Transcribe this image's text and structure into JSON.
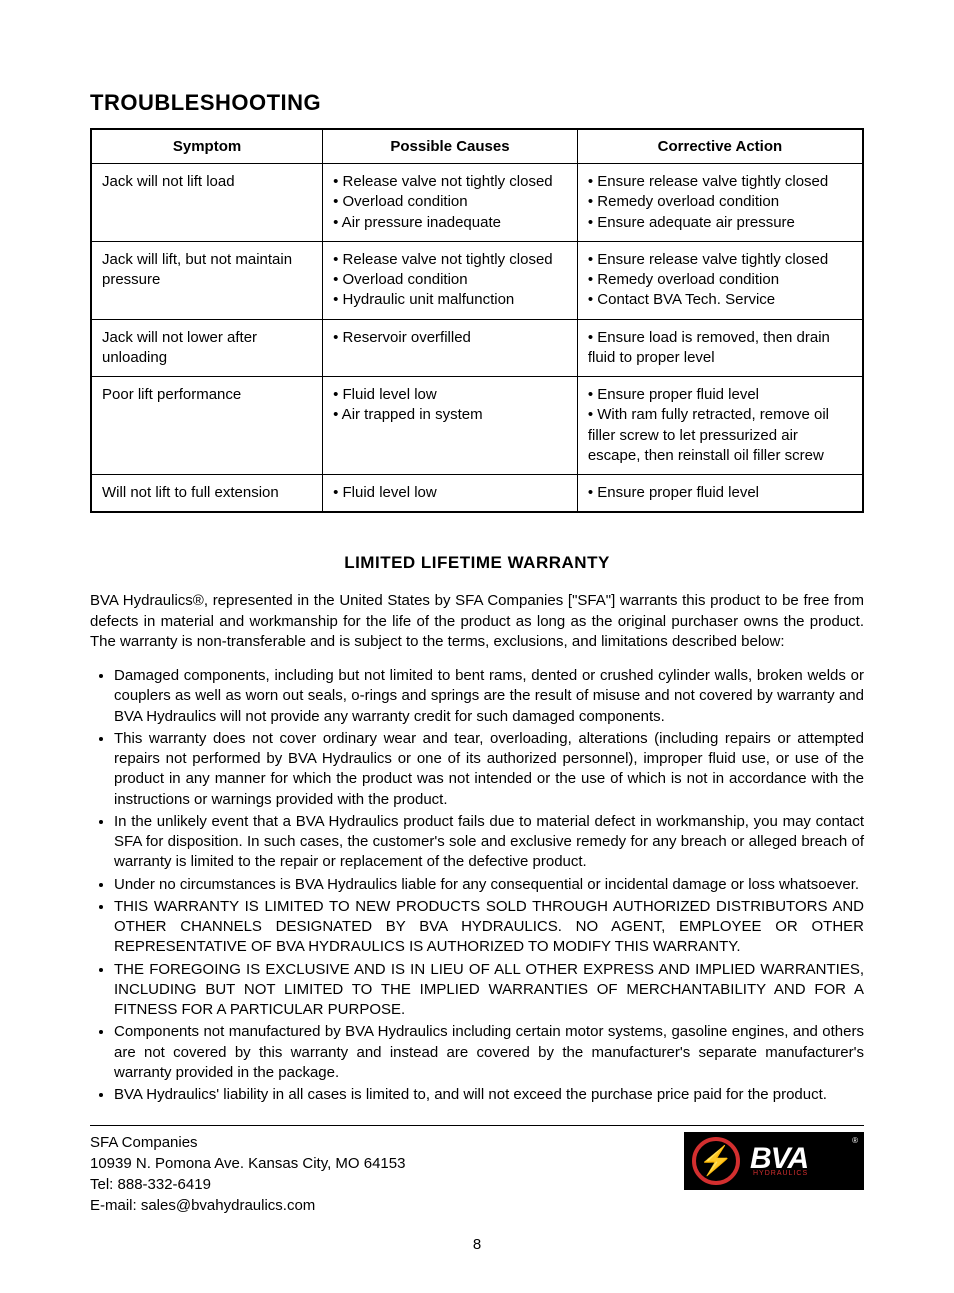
{
  "title": "TROUBLESHOOTING",
  "table": {
    "headers": {
      "symptom": "Symptom",
      "causes": "Possible Causes",
      "action": "Corrective Action"
    },
    "rows": [
      {
        "symptom": "Jack will not lift load",
        "causes": [
          "• Release valve not tightly closed",
          "• Overload condition",
          "• Air pressure inadequate"
        ],
        "actions": [
          "• Ensure release valve tightly closed",
          "• Remedy overload condition",
          "• Ensure adequate air pressure"
        ]
      },
      {
        "symptom": "Jack will lift, but not maintain pressure",
        "causes": [
          "• Release valve not tightly closed",
          "• Overload condition",
          "• Hydraulic unit malfunction"
        ],
        "actions": [
          "• Ensure release valve tightly closed",
          "• Remedy overload condition",
          "• Contact BVA Tech. Service"
        ]
      },
      {
        "symptom": "Jack will not lower after unloading",
        "causes": [
          "• Reservoir overfilled"
        ],
        "actions": [
          "• Ensure load is removed, then drain fluid to proper level"
        ]
      },
      {
        "symptom": "Poor lift performance",
        "causes": [
          "• Fluid level low",
          "• Air trapped in system"
        ],
        "actions": [
          "• Ensure proper fluid level",
          "• With ram fully retracted, remove oil filler screw to let pressurized air escape, then reinstall oil filler screw"
        ]
      },
      {
        "symptom": "Will not lift to full extension",
        "causes": [
          "• Fluid level low"
        ],
        "actions": [
          "• Ensure proper fluid level"
        ]
      }
    ]
  },
  "warranty": {
    "heading": "LIMITED LIFETIME WARRANTY",
    "intro": "BVA Hydraulics®, represented in the United States by SFA Companies [\"SFA\"] warrants this product to be free from defects in material and workmanship for the life of the product as long as the original purchaser owns the product. The warranty is non-transferable and is subject to the terms, exclusions, and limitations described below:",
    "items": [
      "Damaged components, including but not limited to bent rams, dented or crushed cylinder walls, broken welds or couplers as well as worn out seals, o-rings and springs are the result of misuse and not covered by warranty and BVA Hydraulics will not provide any warranty credit for such damaged components.",
      "This warranty does not cover ordinary wear and tear, overloading, alterations (including repairs or attempted repairs not performed by BVA Hydraulics or one of its authorized personnel), improper fluid use, or use of the product in any manner for which the product was not intended or the use of which is not in accordance with the instructions or warnings provided with the product.",
      "In the unlikely event that a BVA Hydraulics product fails due to material defect in workmanship, you may contact SFA for disposition. In such cases, the customer's sole and exclusive remedy for any breach or alleged breach of warranty is limited to the repair or replacement of the defective product.",
      "Under no circumstances is BVA Hydraulics liable for any consequential or incidental damage or loss whatsoever.",
      "THIS WARRANTY IS LIMITED TO NEW PRODUCTS SOLD THROUGH AUTHORIZED DISTRIBUTORS AND OTHER CHANNELS DESIGNATED BY BVA HYDRAULICS. NO AGENT, EMPLOYEE OR OTHER REPRESENTATIVE OF BVA HYDRAULICS IS AUTHORIZED TO MODIFY THIS WARRANTY.",
      "THE FOREGOING IS EXCLUSIVE AND IS IN LIEU OF ALL OTHER EXPRESS AND IMPLIED WARRANTIES, INCLUDING BUT NOT LIMITED TO THE IMPLIED WARRANTIES OF MERCHANTABILITY AND FOR A FITNESS FOR A PARTICULAR PURPOSE.",
      "Components not manufactured by BVA Hydraulics including certain motor systems, gasoline engines, and others are not covered by this warranty and instead are covered by the manufacturer's separate manufacturer's warranty provided in the package.",
      "BVA Hydraulics' liability in all cases is limited to, and will not exceed the purchase price paid for the product."
    ]
  },
  "footer": {
    "company": "SFA Companies",
    "address": "10939  N. Pomona Ave. Kansas City, MO 64153",
    "tel": "Tel: 888-332-6419",
    "email": "E-mail: sales@bvahydraulics.com"
  },
  "logo": {
    "brand": "BVA",
    "sub": "HYDRAULICS",
    "accent_color": "#d32f2f",
    "bg_color": "#000000"
  },
  "page_number": "8"
}
